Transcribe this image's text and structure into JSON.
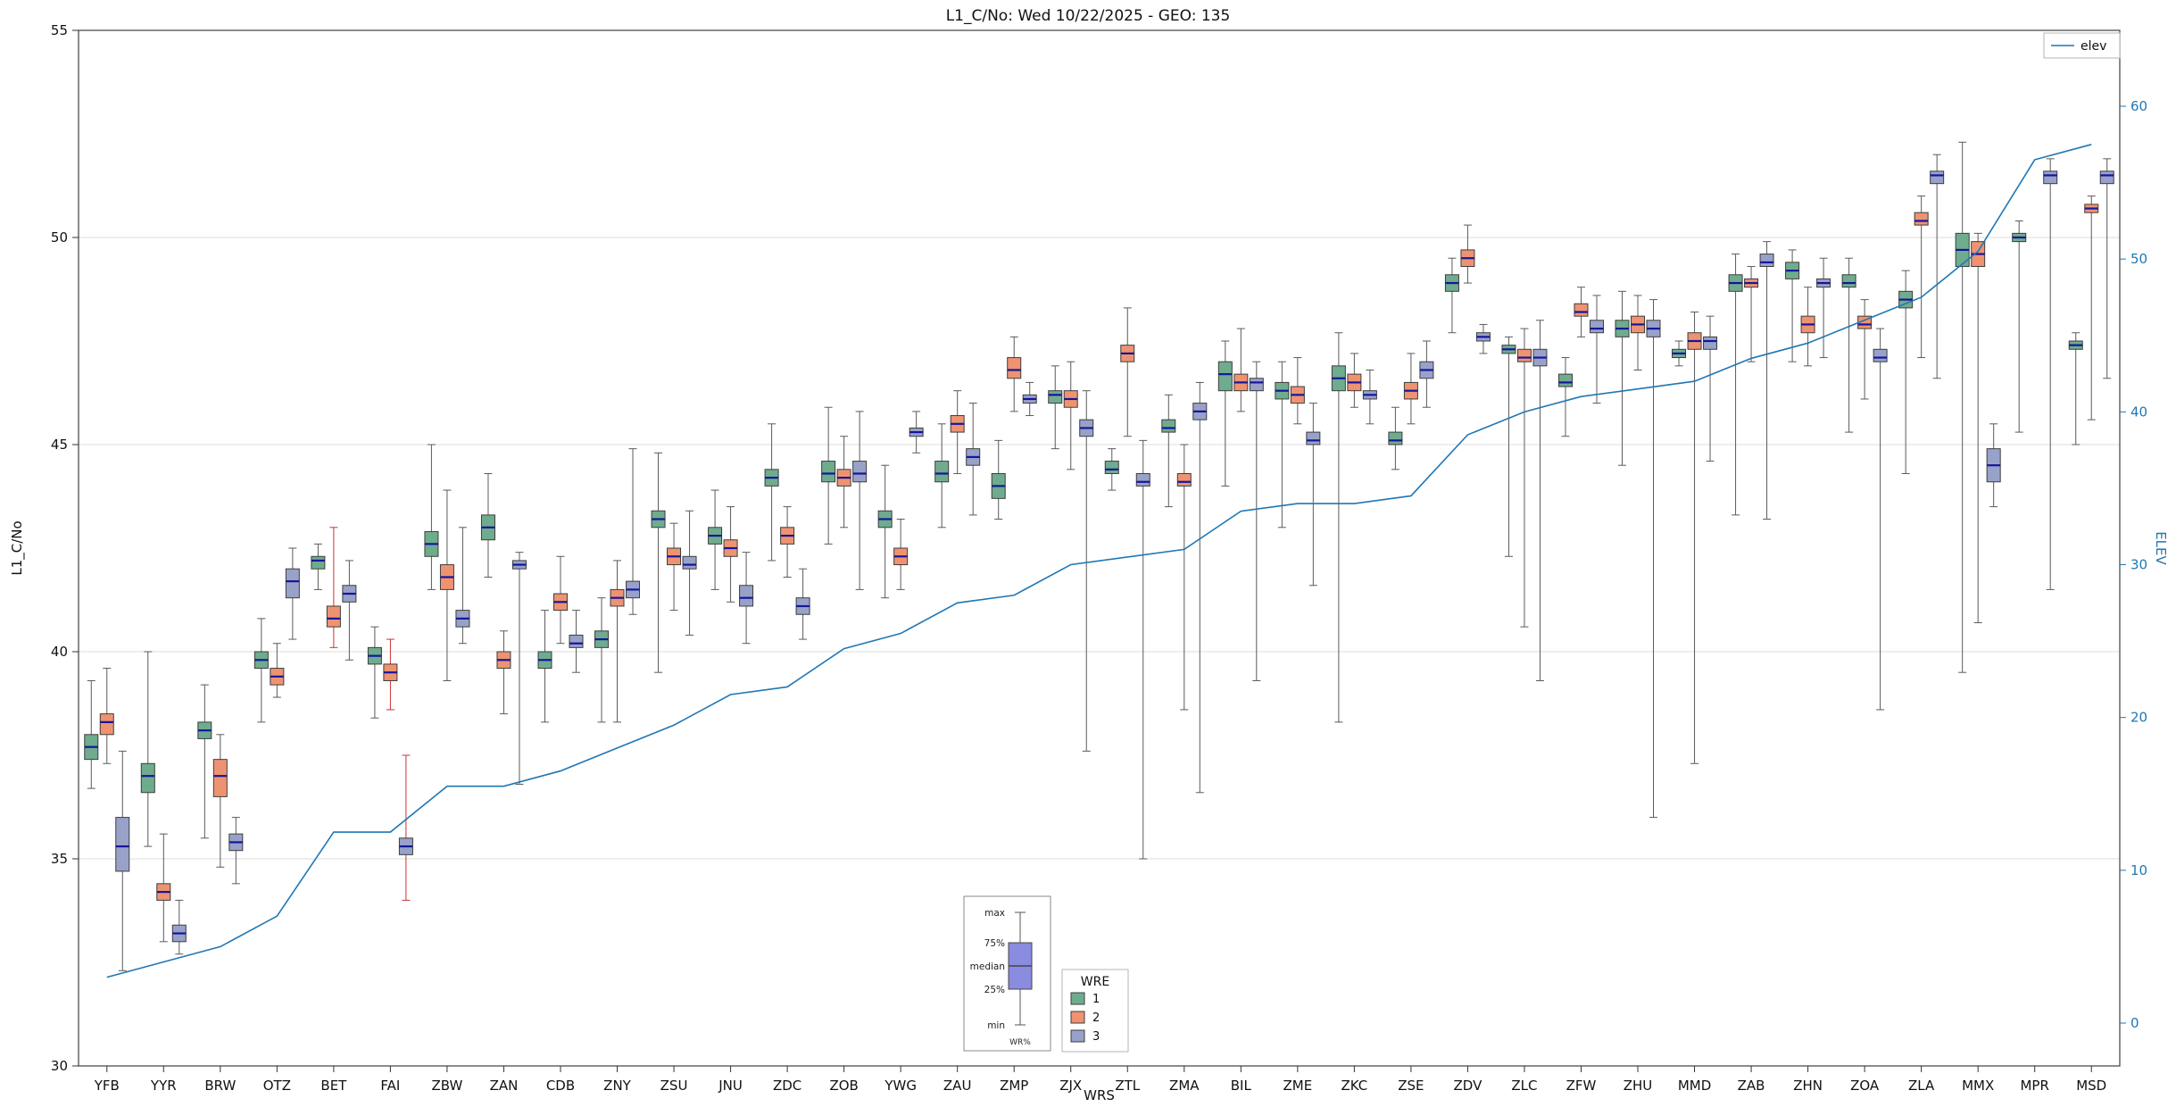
{
  "title": "L1_C/No: Wed 10/22/2025 - GEO: 135",
  "axes": {
    "left_label": "L1_C/No",
    "right_label": "ELEV",
    "x_label": "WRS",
    "left_ticks": [
      30,
      35,
      40,
      45,
      50,
      55
    ],
    "right_ticks": [
      0,
      10,
      20,
      30,
      40,
      50,
      60
    ]
  },
  "legend_elev": {
    "label": "elev"
  },
  "legend_wre": {
    "title": "WRE",
    "entries": [
      {
        "label": "1",
        "color": "#6fac8e"
      },
      {
        "label": "2",
        "color": "#ee9371"
      },
      {
        "label": "3",
        "color": "#98a2c9"
      }
    ]
  },
  "inset": {
    "labels": [
      "max",
      "75%",
      "median",
      "25%",
      "min"
    ],
    "caption": "WR%",
    "box_color": "#8a8ce0"
  },
  "colors": {
    "elev_line": "#1f77b4",
    "median": "#16169b",
    "whisker": "#5a5a5a",
    "red_whisker": "#cc3333",
    "grid": "#dcdcdc",
    "box_edge": "#3d3d3d"
  },
  "chart_data": {
    "type": "boxplot+line",
    "title": "L1_C/No: Wed 10/22/2025 - GEO: 135",
    "xlabel": "WRS",
    "ylabel_left": "L1_C/No",
    "ylabel_right": "ELEV",
    "ylim_left": [
      30,
      55
    ],
    "ylim_right": [
      0,
      60
    ],
    "grid": true,
    "categories": [
      "YFB",
      "YYR",
      "BRW",
      "OTZ",
      "BET",
      "FAI",
      "ZBW",
      "ZAN",
      "CDB",
      "ZNY",
      "ZSU",
      "JNU",
      "ZDC",
      "ZOB",
      "YWG",
      "ZAU",
      "ZMP",
      "ZJX",
      "ZTL",
      "ZMA",
      "BIL",
      "ZME",
      "ZKC",
      "ZSE",
      "ZDV",
      "ZLC",
      "ZFW",
      "ZHU",
      "MMD",
      "ZAB",
      "ZHN",
      "ZOA",
      "ZLA",
      "MMX",
      "MPR",
      "MSD"
    ],
    "box_stats_format": [
      "whisker_low",
      "q1",
      "median",
      "q3",
      "whisker_high",
      "optional_whisker_color"
    ],
    "series": [
      {
        "name": "1",
        "color": "#6fac8e",
        "boxes": [
          [
            36.7,
            37.4,
            37.7,
            38.0,
            39.3
          ],
          [
            35.3,
            36.6,
            37.0,
            37.3,
            40.0
          ],
          [
            35.5,
            37.9,
            38.1,
            38.3,
            39.2
          ],
          [
            38.3,
            39.6,
            39.8,
            40.0,
            40.8
          ],
          [
            41.5,
            42.0,
            42.2,
            42.3,
            42.6
          ],
          [
            38.4,
            39.7,
            39.9,
            40.1,
            40.6
          ],
          [
            41.5,
            42.3,
            42.6,
            42.9,
            45.0
          ],
          [
            41.8,
            42.7,
            43.0,
            43.3,
            44.3
          ],
          [
            38.3,
            39.6,
            39.8,
            40.0,
            41.0
          ],
          [
            38.3,
            40.1,
            40.3,
            40.5,
            41.3
          ],
          [
            39.5,
            43.0,
            43.2,
            43.4,
            44.8
          ],
          [
            41.5,
            42.6,
            42.8,
            43.0,
            43.9
          ],
          [
            42.2,
            44.0,
            44.2,
            44.4,
            45.5
          ],
          [
            42.6,
            44.1,
            44.3,
            44.6,
            45.9
          ],
          [
            41.3,
            43.0,
            43.2,
            43.4,
            44.5
          ],
          [
            43.0,
            44.1,
            44.3,
            44.6,
            45.5
          ],
          [
            43.2,
            43.7,
            44.0,
            44.3,
            45.1
          ],
          [
            44.9,
            46.0,
            46.2,
            46.3,
            46.9
          ],
          [
            43.9,
            44.3,
            44.4,
            44.6,
            44.9
          ],
          [
            43.5,
            45.3,
            45.4,
            45.6,
            46.2
          ],
          [
            44.0,
            46.3,
            46.7,
            47.0,
            47.5
          ],
          [
            43.0,
            46.1,
            46.3,
            46.5,
            47.0
          ],
          [
            38.3,
            46.3,
            46.6,
            46.9,
            47.7
          ],
          [
            44.4,
            45.0,
            45.1,
            45.3,
            45.9
          ],
          [
            47.7,
            48.7,
            48.9,
            49.1,
            49.5
          ],
          [
            42.3,
            47.2,
            47.3,
            47.4,
            47.6
          ],
          [
            45.2,
            46.4,
            46.5,
            46.7,
            47.1
          ],
          [
            44.5,
            47.6,
            47.8,
            48.0,
            48.7
          ],
          [
            46.9,
            47.1,
            47.2,
            47.3,
            47.5
          ],
          [
            43.3,
            48.7,
            48.9,
            49.1,
            49.6
          ],
          [
            47.0,
            49.0,
            49.2,
            49.4,
            49.7
          ],
          [
            45.3,
            48.8,
            48.9,
            49.1,
            49.5
          ],
          [
            44.3,
            48.3,
            48.5,
            48.7,
            49.2
          ],
          [
            39.5,
            49.3,
            49.7,
            50.1,
            52.3
          ],
          [
            45.3,
            49.9,
            50.0,
            50.1,
            50.4
          ],
          [
            45.0,
            47.3,
            47.4,
            47.5,
            47.7
          ]
        ]
      },
      {
        "name": "2",
        "color": "#ee9371",
        "boxes": [
          [
            37.3,
            38.0,
            38.3,
            38.5,
            39.6
          ],
          [
            33.0,
            34.0,
            34.2,
            34.4,
            35.6
          ],
          [
            34.8,
            36.5,
            37.0,
            37.4,
            38.0
          ],
          [
            38.9,
            39.2,
            39.4,
            39.6,
            40.2
          ],
          [
            40.1,
            40.6,
            40.8,
            41.1,
            43.0,
            "red"
          ],
          [
            38.6,
            39.3,
            39.5,
            39.7,
            40.3,
            "red"
          ],
          [
            39.3,
            41.5,
            41.8,
            42.1,
            43.9
          ],
          [
            38.5,
            39.6,
            39.8,
            40.0,
            40.5
          ],
          [
            40.2,
            41.0,
            41.2,
            41.4,
            42.3
          ],
          [
            38.3,
            41.1,
            41.3,
            41.5,
            42.2
          ],
          [
            41.0,
            42.1,
            42.3,
            42.5,
            43.1
          ],
          [
            41.2,
            42.3,
            42.5,
            42.7,
            43.5
          ],
          [
            41.8,
            42.6,
            42.8,
            43.0,
            43.5
          ],
          [
            43.0,
            44.0,
            44.2,
            44.4,
            45.2
          ],
          [
            41.5,
            42.1,
            42.3,
            42.5,
            43.2
          ],
          [
            44.3,
            45.3,
            45.5,
            45.7,
            46.3
          ],
          [
            45.8,
            46.6,
            46.8,
            47.1,
            47.6
          ],
          [
            44.4,
            45.9,
            46.1,
            46.3,
            47.0
          ],
          [
            45.2,
            47.0,
            47.2,
            47.4,
            48.3
          ],
          [
            38.6,
            44.0,
            44.1,
            44.3,
            45.0
          ],
          [
            45.8,
            46.3,
            46.5,
            46.7,
            47.8
          ],
          [
            45.5,
            46.0,
            46.2,
            46.4,
            47.1
          ],
          [
            45.9,
            46.3,
            46.5,
            46.7,
            47.2
          ],
          [
            45.5,
            46.1,
            46.3,
            46.5,
            47.2
          ],
          [
            48.9,
            49.3,
            49.5,
            49.7,
            50.3
          ],
          [
            40.6,
            47.0,
            47.1,
            47.3,
            47.8
          ],
          [
            47.6,
            48.1,
            48.2,
            48.4,
            48.8
          ],
          [
            46.8,
            47.7,
            47.9,
            48.1,
            48.6
          ],
          [
            37.3,
            47.3,
            47.5,
            47.7,
            48.2
          ],
          [
            47.0,
            48.8,
            48.9,
            49.0,
            49.3
          ],
          [
            46.9,
            47.7,
            47.9,
            48.1,
            48.8
          ],
          [
            46.1,
            47.8,
            47.9,
            48.1,
            48.5
          ],
          [
            47.1,
            50.3,
            50.4,
            50.6,
            51.0
          ],
          [
            40.7,
            49.3,
            49.6,
            49.9,
            50.1
          ],
          null,
          [
            45.6,
            50.6,
            50.7,
            50.8,
            51.0
          ]
        ]
      },
      {
        "name": "3",
        "color": "#98a2c9",
        "boxes": [
          [
            32.3,
            34.7,
            35.3,
            36.0,
            37.6
          ],
          [
            32.7,
            33.0,
            33.2,
            33.4,
            34.0
          ],
          [
            34.4,
            35.2,
            35.4,
            35.6,
            36.0
          ],
          [
            40.3,
            41.3,
            41.7,
            42.0,
            42.5
          ],
          [
            39.8,
            41.2,
            41.4,
            41.6,
            42.2
          ],
          [
            34.0,
            35.1,
            35.3,
            35.5,
            37.5,
            "red"
          ],
          [
            40.2,
            40.6,
            40.8,
            41.0,
            43.0
          ],
          [
            36.8,
            42.0,
            42.1,
            42.2,
            42.4
          ],
          [
            39.5,
            40.1,
            40.2,
            40.4,
            41.0
          ],
          [
            40.9,
            41.3,
            41.5,
            41.7,
            44.9
          ],
          [
            40.4,
            42.0,
            42.1,
            42.3,
            43.4
          ],
          [
            40.2,
            41.1,
            41.3,
            41.6,
            42.4
          ],
          [
            40.3,
            40.9,
            41.1,
            41.3,
            42.0
          ],
          [
            41.5,
            44.1,
            44.3,
            44.6,
            45.8
          ],
          [
            44.8,
            45.2,
            45.3,
            45.4,
            45.8
          ],
          [
            43.3,
            44.5,
            44.7,
            44.9,
            46.0
          ],
          [
            45.7,
            46.0,
            46.1,
            46.2,
            46.5
          ],
          [
            37.6,
            45.2,
            45.4,
            45.6,
            46.3
          ],
          [
            35.0,
            44.0,
            44.1,
            44.3,
            45.1
          ],
          [
            36.6,
            45.6,
            45.8,
            46.0,
            46.5
          ],
          [
            39.3,
            46.3,
            46.5,
            46.6,
            47.0
          ],
          [
            41.6,
            45.0,
            45.1,
            45.3,
            46.0
          ],
          [
            45.5,
            46.1,
            46.2,
            46.3,
            46.8
          ],
          [
            45.9,
            46.6,
            46.8,
            47.0,
            47.5
          ],
          [
            47.2,
            47.5,
            47.6,
            47.7,
            47.9
          ],
          [
            39.3,
            46.9,
            47.1,
            47.3,
            48.0
          ],
          [
            46.0,
            47.7,
            47.8,
            48.0,
            48.6
          ],
          [
            36.0,
            47.6,
            47.8,
            48.0,
            48.5
          ],
          [
            44.6,
            47.3,
            47.5,
            47.6,
            48.1
          ],
          [
            43.2,
            49.3,
            49.4,
            49.6,
            49.9
          ],
          [
            47.1,
            48.8,
            48.9,
            49.0,
            49.5
          ],
          [
            38.6,
            47.0,
            47.1,
            47.3,
            47.8
          ],
          [
            46.6,
            51.3,
            51.5,
            51.6,
            52.0
          ],
          [
            43.5,
            44.1,
            44.5,
            44.9,
            45.5
          ],
          [
            41.5,
            51.3,
            51.5,
            51.6,
            51.9
          ],
          [
            46.6,
            51.3,
            51.5,
            51.6,
            51.9
          ]
        ]
      }
    ],
    "line": {
      "name": "elev",
      "axis": "right",
      "color": "#1f77b4",
      "values": [
        3,
        4,
        5,
        7,
        12.5,
        12.5,
        15.5,
        15.5,
        16.5,
        18,
        19.5,
        21.5,
        22,
        24.5,
        25.5,
        27.5,
        28,
        30,
        30.5,
        31,
        33.5,
        34,
        34,
        34.5,
        38.5,
        40,
        41,
        41.5,
        42,
        43.5,
        44.5,
        46,
        47.5,
        50.5,
        56.5,
        57.5
      ]
    }
  }
}
